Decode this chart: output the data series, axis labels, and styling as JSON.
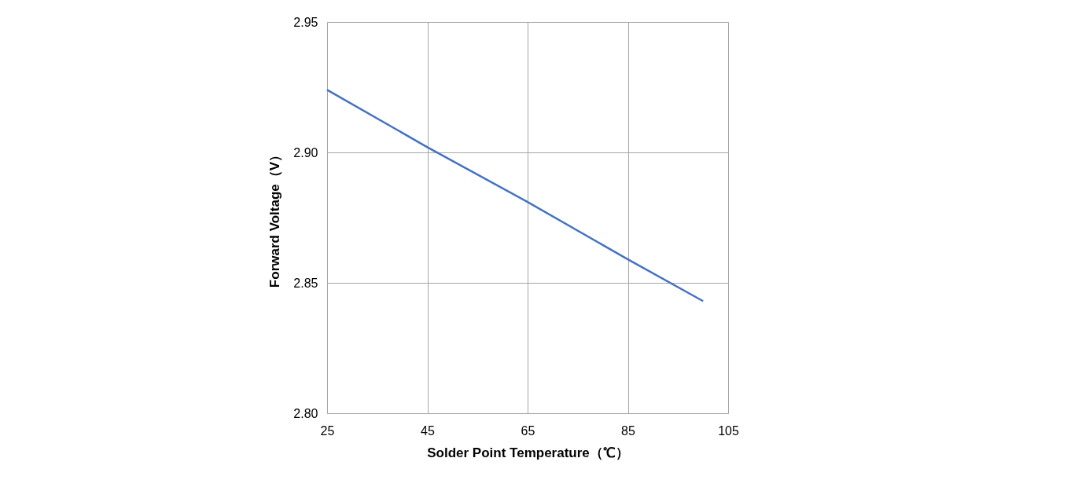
{
  "chart_data": {
    "type": "line",
    "xlabel": "Solder Point Temperature（℃）",
    "ylabel": "Forward Voltage（V）",
    "x": [
      25,
      45,
      65,
      85,
      100
    ],
    "series": [
      {
        "color": "#4472c4",
        "values": [
          2.924,
          2.902,
          2.881,
          2.859,
          2.843
        ]
      }
    ],
    "xlim": [
      25,
      105
    ],
    "xticks": [
      25,
      45,
      65,
      85,
      105
    ],
    "ylim": [
      2.8,
      2.95
    ],
    "yticks": [
      {
        "value": 2.8,
        "label": "2.80"
      },
      {
        "value": 2.85,
        "label": "2.85"
      },
      {
        "value": 2.9,
        "label": "2.90"
      },
      {
        "value": 2.95,
        "label": "2.95"
      }
    ],
    "grid": true,
    "marker": "none",
    "line_style": "solid"
  }
}
